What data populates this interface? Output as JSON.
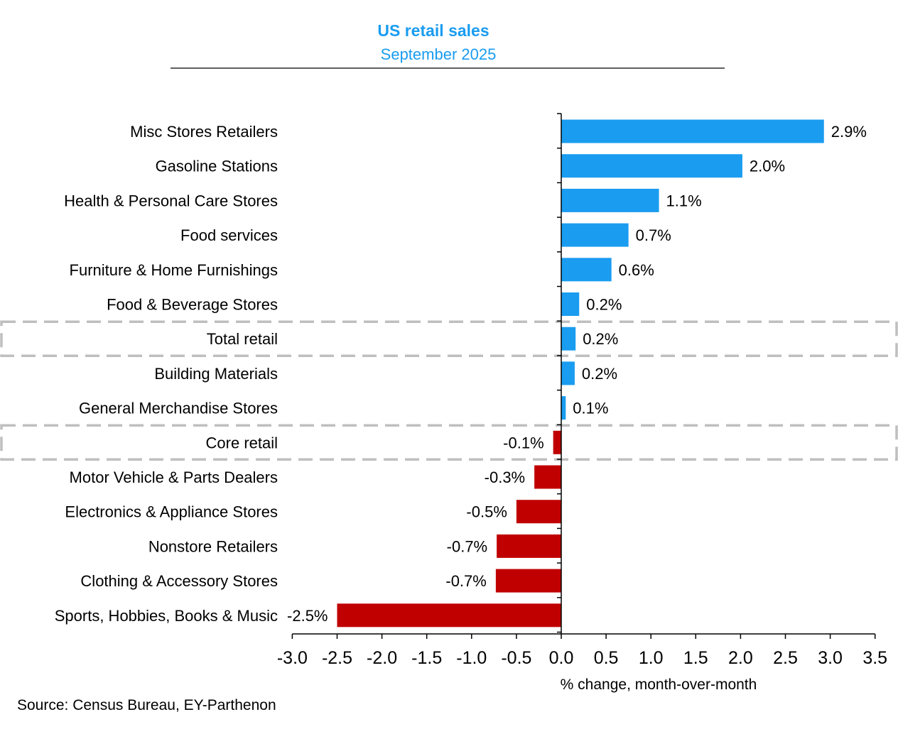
{
  "chart_data": {
    "type": "bar",
    "orientation": "horizontal",
    "title": "US retail sales",
    "subtitle": "September 2025",
    "xlabel": "% change, month-over-month",
    "source": "Source: Census Bureau, EY-Parthenon",
    "xlim": [
      -3.0,
      3.5
    ],
    "xticks": [
      "-3.0",
      "-2.5",
      "-2.0",
      "-1.5",
      "-1.0",
      "-0.5",
      "0.0",
      "0.5",
      "1.0",
      "1.5",
      "2.0",
      "2.5",
      "3.0",
      "3.5"
    ],
    "categories": [
      "Misc Stores Retailers",
      "Gasoline Stations",
      "Health & Personal Care Stores",
      "Food services",
      "Furniture & Home Furnishings",
      "Food & Beverage Stores",
      "Total retail",
      "Building Materials",
      "General Merchandise Stores",
      "Core retail",
      "Motor Vehicle & Parts Dealers",
      "Electronics & Appliance Stores",
      "Nonstore Retailers",
      "Clothing & Accessory Stores",
      "Sports, Hobbies, Books & Music"
    ],
    "values": [
      2.93,
      2.02,
      1.09,
      0.75,
      0.56,
      0.2,
      0.16,
      0.15,
      0.05,
      -0.09,
      -0.3,
      -0.5,
      -0.72,
      -0.73,
      -2.5
    ],
    "data_labels": [
      "2.9%",
      "2.0%",
      "1.1%",
      "0.7%",
      "0.6%",
      "0.2%",
      "0.2%",
      "0.2%",
      "0.1%",
      "-0.1%",
      "-0.3%",
      "-0.5%",
      "-0.7%",
      "-0.7%",
      "-2.5%"
    ],
    "highlighted": [
      "Total retail",
      "Core retail"
    ],
    "colors": {
      "positive": "#1a9cf0",
      "negative": "#c00000",
      "title": "#1a9cf0",
      "highlight_box": "#bfbfbf"
    }
  }
}
